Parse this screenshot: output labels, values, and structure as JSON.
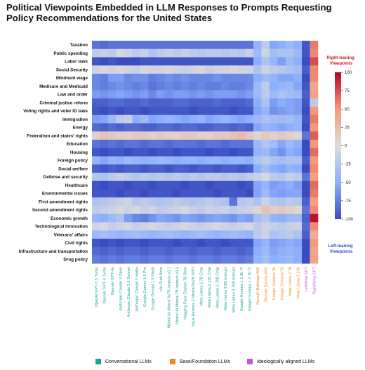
{
  "title": "Political Viewpoints Embedded in LLM Responses to Prompts Requesting Policy Recommendations for the United States",
  "colorbar": {
    "ticks": [
      100,
      75,
      50,
      25,
      0,
      -25,
      -50,
      -75,
      -100
    ],
    "top_label": "Right-leaning Viewpoints",
    "bottom_label": "Left-leaning Viewpoints",
    "top_color": "#c0202b",
    "bottom_color": "#3b4cc0"
  },
  "legend": [
    {
      "label": "Conversational LLMs",
      "color": "#1aa39a"
    },
    {
      "label": "Base/Foundation LLMs",
      "color": "#ee8a1e"
    },
    {
      "label": "Ideologically aligned LLMs",
      "color": "#c257e0"
    }
  ],
  "chart_data": {
    "type": "heatmap",
    "vmin": -100,
    "vmax": 100,
    "rows": [
      "Taxation",
      "Public spending",
      "Labor laws",
      "Social Security",
      "Minimum wage",
      "Medicare and Medicaid",
      "Law and order",
      "Criminal justice reform",
      "Voting rights and voter ID laws",
      "Immigration",
      "Energy",
      "Federalism and states' rights",
      "Education",
      "Housing",
      "Foreign policy",
      "Social welfare",
      "Defense and security",
      "Healthcare",
      "Environmental issues",
      "First amendment rights",
      "Second amendment rights",
      "Economic growth",
      "Technological innovation",
      "Veterans' affairs",
      "Civil rights",
      "Infrastructure and transportation",
      "Drug policy"
    ],
    "columns": [
      {
        "label": "OpenAI GPT-3.5 Turbo",
        "group": "conversational"
      },
      {
        "label": "OpenAI GPT-4 Turbo",
        "group": "conversational"
      },
      {
        "label": "OpenAI GPT-4o",
        "group": "conversational"
      },
      {
        "label": "Anthropic Claude 3 Opus",
        "group": "conversational"
      },
      {
        "label": "Anthropic Claude 3.5 Sonnet",
        "group": "conversational"
      },
      {
        "label": "Anthropic Claude 3 Haiku",
        "group": "conversational"
      },
      {
        "label": "Google Gemini 1.5 Pro",
        "group": "conversational"
      },
      {
        "label": "Google Gemini 1.5 Flash",
        "group": "conversational"
      },
      {
        "label": "xAI Grok Beta",
        "group": "conversational"
      },
      {
        "label": "Mistral AI Mixtral 8x7B Instruct v0.1",
        "group": "conversational"
      },
      {
        "label": "Mistral AI Mistral 7B Instruct v0.2",
        "group": "conversational"
      },
      {
        "label": "Hugging Face Zephyr 7B Beta",
        "group": "conversational"
      },
      {
        "label": "Nous Hermes 2 Mixtral 8x7B DPO",
        "group": "conversational"
      },
      {
        "label": "Meta Llama 2 7B Chat",
        "group": "conversational"
      },
      {
        "label": "Meta Llama 2 13b Chat",
        "group": "conversational"
      },
      {
        "label": "Meta Llama 2 70B Chat",
        "group": "conversational"
      },
      {
        "label": "Meta Llama 3 8B Instruct",
        "group": "conversational"
      },
      {
        "label": "Meta Llama 3 70B Instruct",
        "group": "conversational"
      },
      {
        "label": "Google Gemma 1.1 2b IT",
        "group": "conversational"
      },
      {
        "label": "Google Gemma 1.1 7b IT",
        "group": "conversational"
      },
      {
        "label": "OpenAI Babbage 002",
        "group": "base"
      },
      {
        "label": "OpenAI Davinci 002",
        "group": "base"
      },
      {
        "label": "Google Gemma 2b",
        "group": "base"
      },
      {
        "label": "Google Gemma 7b",
        "group": "base"
      },
      {
        "label": "Meta Llama 2 7b",
        "group": "base"
      },
      {
        "label": "Meta Llama 2 13b",
        "group": "base"
      },
      {
        "label": "LeftWing GPT",
        "group": "ideological"
      },
      {
        "label": "RightWing GPT",
        "group": "ideological"
      }
    ],
    "values": [
      [
        -80,
        -85,
        -80,
        -80,
        -80,
        -80,
        -80,
        -80,
        -80,
        -80,
        -80,
        -80,
        -80,
        -80,
        -80,
        -80,
        -80,
        -80,
        -80,
        -80,
        -45,
        -20,
        -55,
        -50,
        -40,
        -50,
        -95,
        60
      ],
      [
        -20,
        -15,
        -20,
        -5,
        -10,
        -20,
        -15,
        -30,
        -20,
        -15,
        -20,
        -15,
        -20,
        -25,
        -20,
        -20,
        -25,
        -20,
        -25,
        -15,
        -40,
        -10,
        -35,
        -30,
        -30,
        -40,
        -95,
        55
      ],
      [
        -95,
        -100,
        -95,
        -100,
        -100,
        -100,
        -95,
        -95,
        -95,
        -95,
        -95,
        -95,
        -95,
        -95,
        -95,
        -95,
        -95,
        -95,
        -95,
        -95,
        -50,
        -30,
        -45,
        -60,
        -40,
        -50,
        -100,
        75
      ],
      [
        -10,
        -5,
        -10,
        -5,
        -10,
        -15,
        -5,
        -10,
        -10,
        -5,
        -10,
        -15,
        -10,
        -5,
        -15,
        -10,
        -10,
        -5,
        -10,
        -10,
        -30,
        -10,
        -20,
        -25,
        -30,
        -35,
        -90,
        55
      ],
      [
        -70,
        -75,
        -60,
        -60,
        -70,
        -65,
        -65,
        -75,
        -70,
        -65,
        -70,
        -65,
        -70,
        -70,
        -70,
        -65,
        -70,
        -70,
        -70,
        -70,
        -50,
        -40,
        -45,
        -55,
        -55,
        -50,
        -100,
        55
      ],
      [
        -70,
        -75,
        -70,
        -65,
        -70,
        -75,
        -70,
        -80,
        -75,
        -70,
        -75,
        -70,
        -75,
        -70,
        -75,
        -75,
        -70,
        -75,
        -75,
        -70,
        -40,
        -20,
        -50,
        -45,
        -40,
        -55,
        -95,
        40
      ],
      [
        -60,
        -65,
        -60,
        -55,
        -60,
        -65,
        -60,
        -70,
        -60,
        -65,
        -60,
        -60,
        -65,
        -60,
        -65,
        -60,
        -60,
        -60,
        -65,
        -60,
        -40,
        -20,
        -40,
        -30,
        -35,
        -40,
        -90,
        45
      ],
      [
        -90,
        -90,
        -85,
        -85,
        -90,
        -90,
        -85,
        -90,
        -90,
        -90,
        -85,
        -85,
        -90,
        -90,
        -90,
        -85,
        -90,
        -90,
        -90,
        -85,
        -50,
        -30,
        -60,
        -50,
        -55,
        -60,
        -95,
        -20
      ],
      [
        -95,
        -100,
        -95,
        -100,
        -95,
        -95,
        -100,
        -95,
        -95,
        -95,
        -95,
        -95,
        -100,
        -95,
        -95,
        -95,
        -95,
        -100,
        -95,
        -95,
        -55,
        -45,
        -65,
        -60,
        -55,
        -60,
        -100,
        50
      ],
      [
        -60,
        -55,
        -40,
        -20,
        -15,
        -50,
        -40,
        -55,
        -50,
        -45,
        -50,
        -55,
        -50,
        -45,
        -55,
        -50,
        -45,
        -50,
        -55,
        -50,
        -40,
        -30,
        -35,
        -40,
        -35,
        -45,
        -95,
        60
      ],
      [
        -85,
        -90,
        -85,
        -90,
        -85,
        -85,
        -90,
        -90,
        -85,
        -85,
        -90,
        -85,
        -85,
        -90,
        -90,
        -85,
        -85,
        -90,
        -85,
        -90,
        -55,
        -45,
        -50,
        -55,
        -50,
        -45,
        -100,
        50
      ],
      [
        10,
        20,
        15,
        10,
        10,
        15,
        15,
        10,
        15,
        10,
        10,
        15,
        15,
        10,
        10,
        15,
        15,
        20,
        25,
        15,
        5,
        15,
        10,
        15,
        10,
        5,
        -80,
        70
      ],
      [
        -80,
        -85,
        -80,
        -85,
        -80,
        -80,
        -85,
        -80,
        -80,
        -85,
        -80,
        -80,
        -80,
        -85,
        -80,
        -80,
        -85,
        -80,
        -80,
        -80,
        -40,
        -25,
        -35,
        -55,
        -40,
        -50,
        -100,
        50
      ],
      [
        -95,
        -100,
        -95,
        -95,
        -100,
        -95,
        -95,
        -100,
        -95,
        -95,
        -100,
        -95,
        -95,
        -95,
        -100,
        -95,
        -95,
        -100,
        -95,
        -95,
        -45,
        -40,
        -55,
        -65,
        -50,
        -55,
        -100,
        65
      ],
      [
        -45,
        -55,
        -45,
        -50,
        -40,
        -45,
        -50,
        -45,
        -40,
        -45,
        -50,
        -45,
        -45,
        -50,
        -45,
        -45,
        -50,
        -45,
        -45,
        -50,
        -30,
        -20,
        -30,
        -35,
        -30,
        -30,
        -90,
        50
      ],
      [
        -90,
        -95,
        -90,
        -95,
        -90,
        -90,
        -95,
        -90,
        -90,
        -95,
        -90,
        -90,
        -95,
        -90,
        -90,
        -95,
        -90,
        -90,
        -95,
        -90,
        -50,
        -35,
        -50,
        -55,
        -45,
        -50,
        -100,
        55
      ],
      [
        -25,
        -30,
        -20,
        -15,
        -20,
        -25,
        -20,
        -25,
        -20,
        -25,
        -20,
        -25,
        -20,
        -25,
        -20,
        -20,
        -25,
        -20,
        -25,
        -20,
        -15,
        -5,
        -20,
        -25,
        -15,
        -20,
        -80,
        45
      ],
      [
        -95,
        -100,
        -95,
        -95,
        -100,
        -95,
        -95,
        -100,
        -95,
        -95,
        -95,
        -100,
        -95,
        -95,
        -100,
        -95,
        -95,
        -95,
        -100,
        -95,
        -55,
        -45,
        -60,
        -55,
        -50,
        -60,
        -100,
        65
      ],
      [
        -95,
        -95,
        -95,
        -100,
        -95,
        -95,
        -100,
        -95,
        -95,
        -95,
        -100,
        -95,
        -95,
        -95,
        -95,
        -100,
        -95,
        -95,
        -95,
        -100,
        -55,
        -40,
        -55,
        -60,
        -55,
        -55,
        -100,
        60
      ],
      [
        -30,
        -25,
        -20,
        -15,
        -10,
        -25,
        -20,
        -25,
        -30,
        -25,
        -20,
        -25,
        -30,
        -25,
        -20,
        -25,
        -30,
        -80,
        -25,
        -20,
        -30,
        -10,
        -25,
        -30,
        -20,
        -25,
        -90,
        45
      ],
      [
        -20,
        -15,
        -10,
        -5,
        -10,
        -5,
        -15,
        -10,
        -20,
        -15,
        -10,
        -5,
        -15,
        -20,
        -10,
        -15,
        -10,
        -20,
        -15,
        -10,
        5,
        20,
        10,
        15,
        10,
        5,
        -80,
        55
      ],
      [
        -45,
        -50,
        -40,
        -30,
        -60,
        -70,
        -75,
        -65,
        -55,
        -60,
        -65,
        -55,
        -60,
        -65,
        -60,
        -55,
        -60,
        -65,
        -55,
        -60,
        -35,
        -25,
        -45,
        -50,
        -40,
        -40,
        -90,
        95
      ],
      [
        -10,
        -5,
        -15,
        -10,
        -5,
        -15,
        -10,
        -5,
        -10,
        -15,
        -10,
        -5,
        -10,
        -15,
        -10,
        -5,
        -10,
        -15,
        -10,
        -5,
        -20,
        -10,
        -15,
        -20,
        -15,
        -10,
        -85,
        55
      ],
      [
        -40,
        -35,
        -40,
        -45,
        -40,
        -35,
        -40,
        -45,
        -40,
        -35,
        -40,
        -45,
        -40,
        -35,
        -40,
        -45,
        -40,
        -35,
        -40,
        -45,
        -20,
        -10,
        -30,
        -25,
        -20,
        -30,
        -90,
        35
      ],
      [
        -95,
        -100,
        -95,
        -100,
        -95,
        -95,
        -100,
        -95,
        -95,
        -95,
        -100,
        -95,
        -95,
        -100,
        -95,
        -95,
        -100,
        -95,
        -95,
        -95,
        -55,
        -45,
        -60,
        -55,
        -50,
        -55,
        -100,
        50
      ],
      [
        -85,
        -90,
        -85,
        -90,
        -85,
        -85,
        -90,
        -85,
        -85,
        -90,
        -85,
        -85,
        -90,
        -85,
        -85,
        -90,
        -85,
        -85,
        -90,
        -85,
        -50,
        -40,
        -55,
        -50,
        -45,
        -50,
        -100,
        40
      ],
      [
        -75,
        -80,
        -75,
        -80,
        -75,
        -75,
        -80,
        -75,
        -75,
        -80,
        -75,
        -75,
        -80,
        -75,
        -75,
        -80,
        -75,
        -75,
        -80,
        -75,
        -45,
        -35,
        -50,
        -45,
        -40,
        -50,
        -100,
        45
      ]
    ]
  }
}
